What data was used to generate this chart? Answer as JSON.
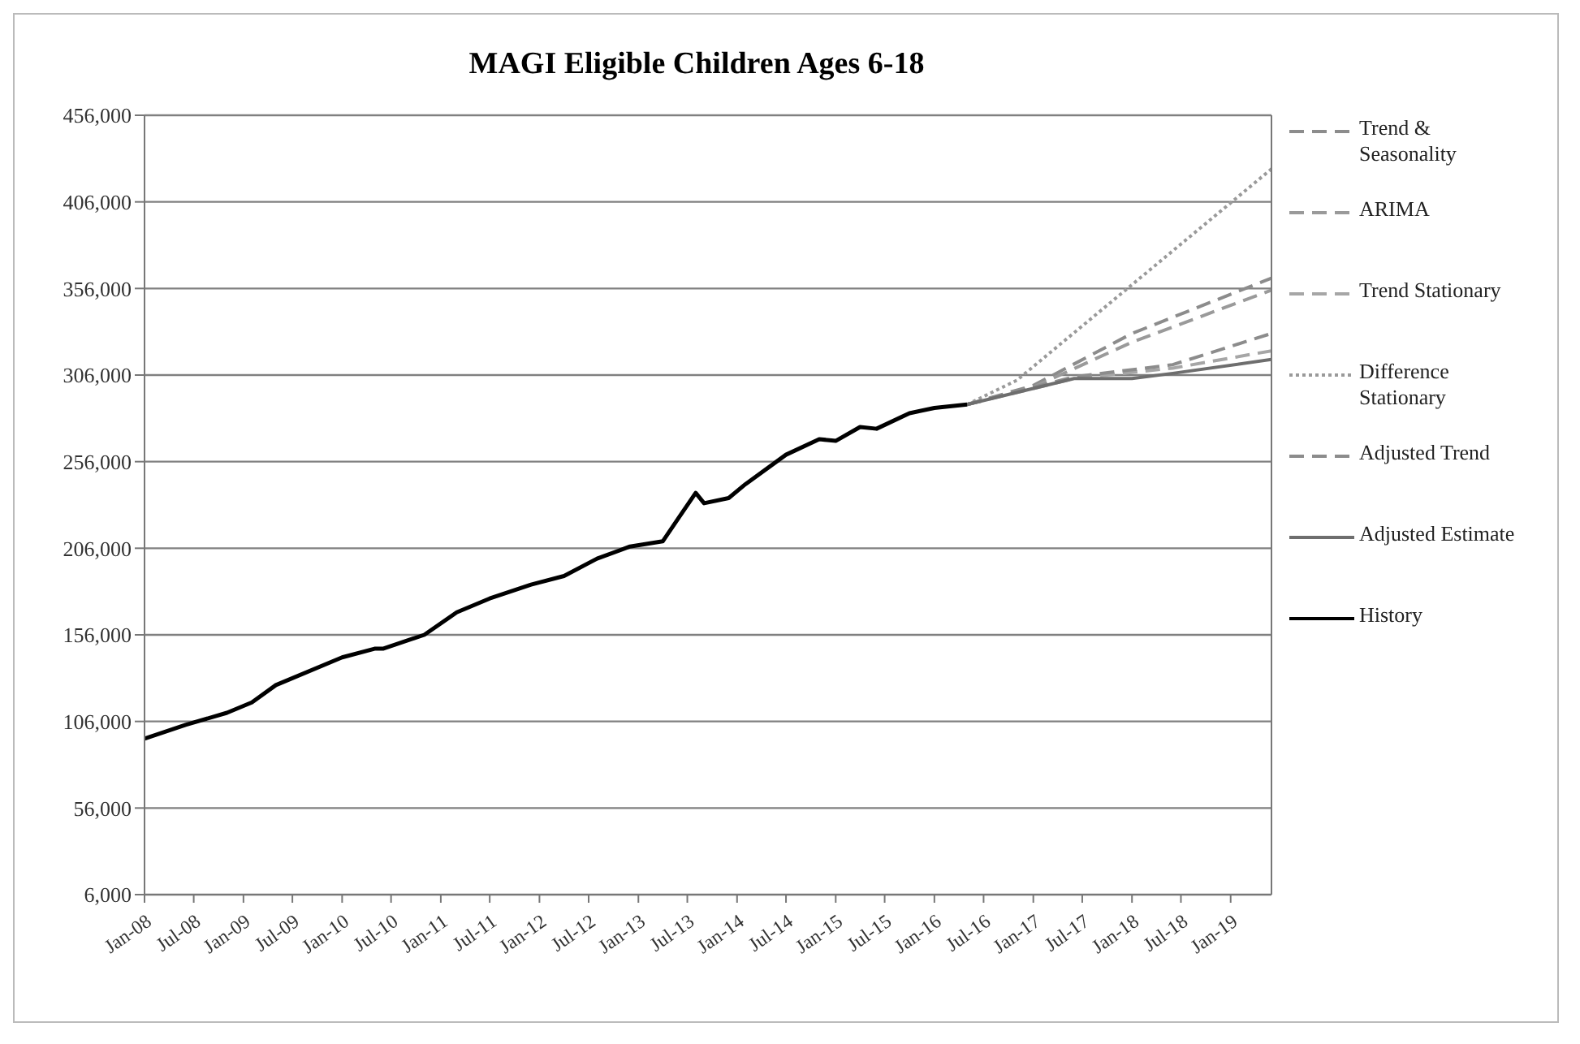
{
  "chart_data": {
    "type": "line",
    "title": "MAGI Eligible Children Ages 6-18",
    "xlim": [
      "2008-01",
      "2019-06"
    ],
    "xticks": [
      {
        "value": "2008-01",
        "label": "Jan-08"
      },
      {
        "value": "2008-07",
        "label": "Jul-08"
      },
      {
        "value": "2009-01",
        "label": "Jan-09"
      },
      {
        "value": "2009-07",
        "label": "Jul-09"
      },
      {
        "value": "2010-01",
        "label": "Jan-10"
      },
      {
        "value": "2010-07",
        "label": "Jul-10"
      },
      {
        "value": "2011-01",
        "label": "Jan-11"
      },
      {
        "value": "2011-07",
        "label": "Jul-11"
      },
      {
        "value": "2012-01",
        "label": "Jan-12"
      },
      {
        "value": "2012-07",
        "label": "Jul-12"
      },
      {
        "value": "2013-01",
        "label": "Jan-13"
      },
      {
        "value": "2013-07",
        "label": "Jul-13"
      },
      {
        "value": "2014-01",
        "label": "Jan-14"
      },
      {
        "value": "2014-07",
        "label": "Jul-14"
      },
      {
        "value": "2015-01",
        "label": "Jan-15"
      },
      {
        "value": "2015-07",
        "label": "Jul-15"
      },
      {
        "value": "2016-01",
        "label": "Jan-16"
      },
      {
        "value": "2016-07",
        "label": "Jul-16"
      },
      {
        "value": "2017-01",
        "label": "Jan-17"
      },
      {
        "value": "2017-07",
        "label": "Jul-17"
      },
      {
        "value": "2018-01",
        "label": "Jan-18"
      },
      {
        "value": "2018-07",
        "label": "Jul-18"
      },
      {
        "value": "2019-01",
        "label": "Jan-19"
      }
    ],
    "ylim": [
      6000,
      456000
    ],
    "yticks": [
      {
        "value": 6000,
        "label": "6,000"
      },
      {
        "value": 56000,
        "label": "56,000"
      },
      {
        "value": 106000,
        "label": "106,000"
      },
      {
        "value": 156000,
        "label": "156,000"
      },
      {
        "value": 206000,
        "label": "206,000"
      },
      {
        "value": 256000,
        "label": "256,000"
      },
      {
        "value": 306000,
        "label": "306,000"
      },
      {
        "value": 356000,
        "label": "356,000"
      },
      {
        "value": 406000,
        "label": "406,000"
      },
      {
        "value": 456000,
        "label": "456,000"
      }
    ],
    "grid": "y",
    "legend": "right",
    "marker": "none",
    "series": [
      {
        "name": "Trend & Seasonality",
        "color": "#8c8c8c",
        "line_style": "dashed",
        "x": [
          "2016-05",
          "2017-01",
          "2018-01",
          "2019-06"
        ],
        "values": [
          289000,
          300000,
          330000,
          362000
        ]
      },
      {
        "name": "ARIMA",
        "color": "#9a9a9a",
        "line_style": "dashed",
        "x": [
          "2016-05",
          "2017-01",
          "2018-01",
          "2019-06"
        ],
        "values": [
          289000,
          299000,
          325000,
          355000
        ]
      },
      {
        "name": "Trend Stationary",
        "color": "#a6a6a6",
        "line_style": "dashed",
        "x": [
          "2016-05",
          "2017-06",
          "2018-06",
          "2019-06"
        ],
        "values": [
          289000,
          304000,
          310000,
          320000
        ]
      },
      {
        "name": "Difference Stationary",
        "color": "#9a9a9a",
        "line_style": "dotted",
        "x": [
          "2016-05",
          "2016-11",
          "2019-06"
        ],
        "values": [
          289000,
          303000,
          425000
        ]
      },
      {
        "name": "Adjusted Trend",
        "color": "#8c8c8c",
        "line_style": "dashed",
        "x": [
          "2016-05",
          "2017-06",
          "2018-06",
          "2019-06"
        ],
        "values": [
          289000,
          305000,
          312000,
          330000
        ]
      },
      {
        "name": "Adjusted Estimate",
        "color": "#6e6e6e",
        "line_style": "solid",
        "x": [
          "2016-05",
          "2017-06",
          "2018-01",
          "2018-06",
          "2019-06"
        ],
        "values": [
          289000,
          304000,
          304000,
          307000,
          315000
        ]
      },
      {
        "name": "History",
        "color": "#000000",
        "line_style": "solid",
        "x": [
          "2008-01",
          "2008-06",
          "2008-11",
          "2009-02",
          "2009-05",
          "2010-01",
          "2010-05",
          "2010-06",
          "2010-11",
          "2011-03",
          "2011-07",
          "2011-12",
          "2012-04",
          "2012-08",
          "2012-12",
          "2013-04",
          "2013-06",
          "2013-08",
          "2013-09",
          "2013-12",
          "2014-02",
          "2014-07",
          "2014-11",
          "2015-01",
          "2015-04",
          "2015-06",
          "2015-10",
          "2016-01",
          "2016-05"
        ],
        "values": [
          96000,
          104000,
          111000,
          117000,
          127000,
          143000,
          148000,
          148000,
          156000,
          169000,
          177000,
          185000,
          190000,
          200000,
          207000,
          210000,
          224000,
          238000,
          232000,
          235000,
          243000,
          260000,
          269000,
          268000,
          276000,
          275000,
          284000,
          287000,
          289000
        ]
      }
    ]
  }
}
